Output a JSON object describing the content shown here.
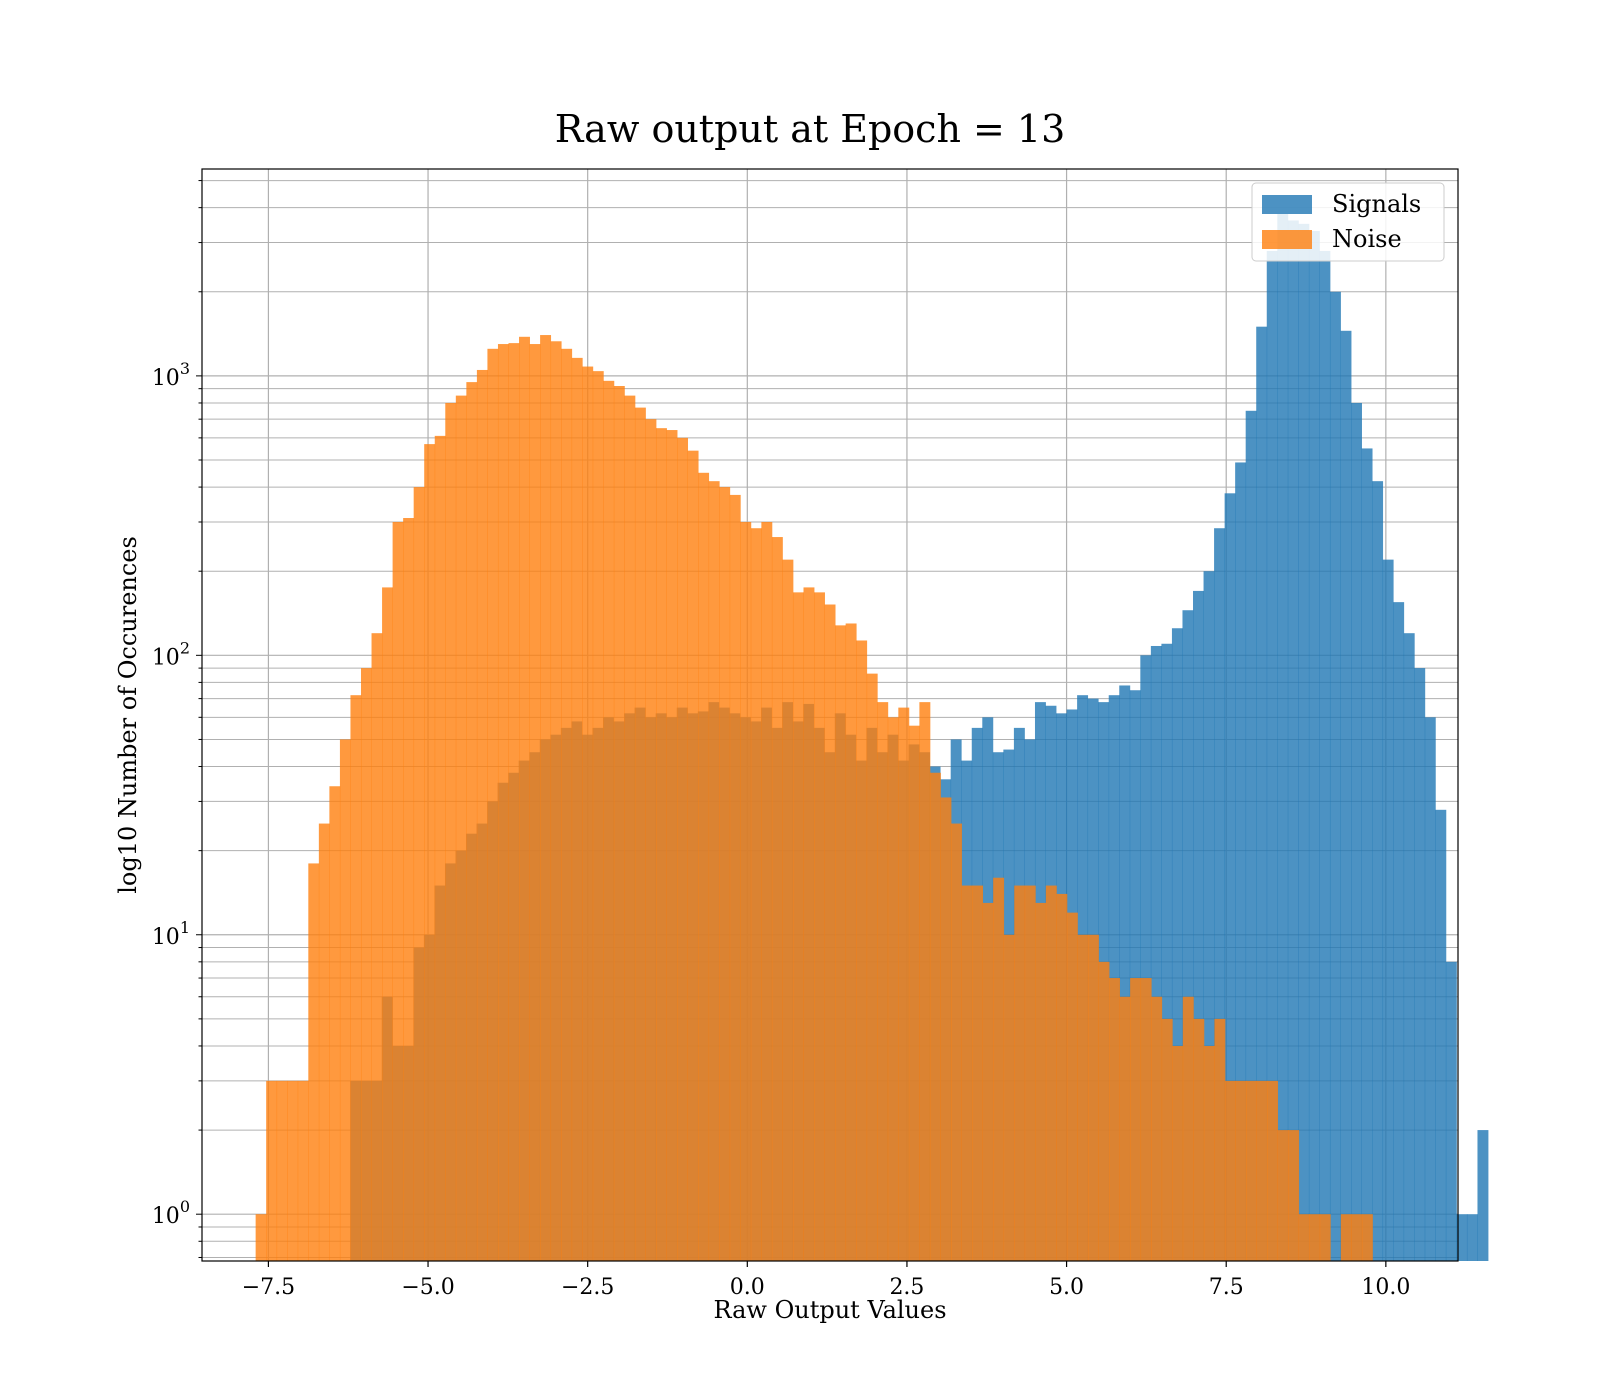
{
  "chart_data": {
    "type": "histogram",
    "title": "Raw output at Epoch = 13",
    "xlabel": "Raw Output Values",
    "ylabel": "log10 Number of Occurences",
    "xlim": [
      -8.54,
      11.13
    ],
    "ylim": [
      0.68,
      5500
    ],
    "yscale": "log",
    "grid": true,
    "grid_minor_y": true,
    "legend_position": "top-right",
    "x_ticks": [
      {
        "value": -7.5,
        "label": "−7.5"
      },
      {
        "value": -5.0,
        "label": "−5.0"
      },
      {
        "value": -2.5,
        "label": "−2.5"
      },
      {
        "value": 0.0,
        "label": "0.0"
      },
      {
        "value": 2.5,
        "label": "2.5"
      },
      {
        "value": 5.0,
        "label": "5.0"
      },
      {
        "value": 7.5,
        "label": "7.5"
      },
      {
        "value": 10.0,
        "label": "10.0"
      }
    ],
    "y_ticks": [
      {
        "value": 1,
        "base": "10",
        "exp": "0"
      },
      {
        "value": 10,
        "base": "10",
        "exp": "1"
      },
      {
        "value": 100,
        "base": "10",
        "exp": "2"
      },
      {
        "value": 1000,
        "base": "10",
        "exp": "3"
      }
    ],
    "series": [
      {
        "name": "Signals",
        "color": "#1f77b4",
        "opacity": 0.8,
        "start": -6.22,
        "bin_width": 0.165,
        "counts": [
          3,
          3,
          3,
          6,
          4,
          4,
          9,
          10,
          15,
          18,
          20,
          23,
          25,
          30,
          35,
          38,
          42,
          45,
          50,
          52,
          55,
          58,
          52,
          55,
          60,
          58,
          62,
          65,
          60,
          62,
          60,
          65,
          62,
          63,
          68,
          65,
          62,
          60,
          58,
          65,
          55,
          68,
          58,
          67,
          55,
          45,
          62,
          52,
          42,
          55,
          45,
          52,
          42,
          48,
          45,
          40,
          36,
          50,
          42,
          55,
          60,
          45,
          46,
          55,
          50,
          68,
          66,
          62,
          64,
          72,
          70,
          68,
          72,
          78,
          75,
          100,
          108,
          110,
          125,
          145,
          170,
          200,
          285,
          380,
          490,
          750,
          1500,
          2800,
          3800,
          3600,
          3500,
          3300,
          2800,
          2000,
          1450,
          800,
          550,
          420,
          220,
          155,
          120,
          90,
          60,
          28,
          8,
          1,
          1,
          2
        ]
      },
      {
        "name": "Noise",
        "color": "#ff7f0e",
        "opacity": 0.8,
        "start": -7.7,
        "bin_width": 0.165,
        "counts": [
          1,
          3,
          3,
          3,
          3,
          18,
          25,
          34,
          50,
          72,
          90,
          120,
          175,
          300,
          310,
          400,
          570,
          610,
          800,
          850,
          950,
          1050,
          1250,
          1300,
          1310,
          1380,
          1300,
          1400,
          1330,
          1250,
          1160,
          1080,
          1040,
          960,
          920,
          850,
          770,
          700,
          650,
          640,
          600,
          540,
          450,
          420,
          400,
          375,
          300,
          285,
          300,
          265,
          220,
          168,
          175,
          168,
          152,
          128,
          130,
          113,
          86,
          68,
          60,
          65,
          56,
          68,
          38,
          31,
          25,
          15,
          15,
          13,
          16,
          10,
          15,
          15,
          13,
          15,
          14,
          12,
          10,
          10,
          8,
          7,
          6,
          7,
          7,
          6,
          5,
          4,
          6,
          5,
          4,
          5,
          3,
          3,
          3,
          3,
          3,
          2,
          2,
          1,
          1,
          1,
          0,
          1,
          1,
          1
        ]
      }
    ]
  }
}
